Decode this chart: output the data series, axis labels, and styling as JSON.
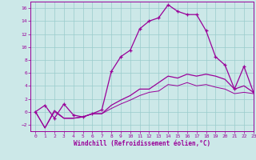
{
  "xlabel": "Windchill (Refroidissement éolien,°C)",
  "background_color": "#cce8e8",
  "grid_color": "#99cccc",
  "line_color": "#990099",
  "hours": [
    0,
    1,
    2,
    3,
    4,
    5,
    6,
    7,
    8,
    9,
    10,
    11,
    12,
    13,
    14,
    15,
    16,
    17,
    18,
    19,
    20,
    21,
    22,
    23
  ],
  "temp_line": [
    0,
    1,
    -1,
    1.2,
    -0.5,
    -0.8,
    -0.3,
    0.3,
    6.2,
    8.5,
    9.5,
    12.8,
    14.0,
    14.5,
    16.5,
    15.5,
    15.0,
    15.0,
    12.5,
    8.5,
    7.2,
    3.5,
    7.0,
    3.0
  ],
  "windchill_line": [
    0,
    -2.5,
    0.2,
    -1,
    -1,
    -0.8,
    -0.3,
    -0.3,
    1.0,
    1.8,
    2.5,
    3.5,
    3.5,
    4.5,
    5.5,
    5.2,
    5.8,
    5.5,
    5.8,
    5.5,
    5.0,
    3.5,
    4.0,
    3.0
  ],
  "low_line": [
    0,
    -2.5,
    0.0,
    -1,
    -1,
    -0.8,
    -0.3,
    -0.3,
    0.5,
    1.2,
    1.8,
    2.5,
    3.0,
    3.2,
    4.2,
    4.0,
    4.5,
    4.0,
    4.2,
    3.8,
    3.5,
    2.8,
    3.0,
    2.8
  ],
  "ylim": [
    -3,
    17
  ],
  "xlim": [
    -0.5,
    23
  ],
  "yticks": [
    -2,
    0,
    2,
    4,
    6,
    8,
    10,
    12,
    14,
    16
  ],
  "xticks": [
    0,
    1,
    2,
    3,
    4,
    5,
    6,
    7,
    8,
    9,
    10,
    11,
    12,
    13,
    14,
    15,
    16,
    17,
    18,
    19,
    20,
    21,
    22,
    23
  ]
}
